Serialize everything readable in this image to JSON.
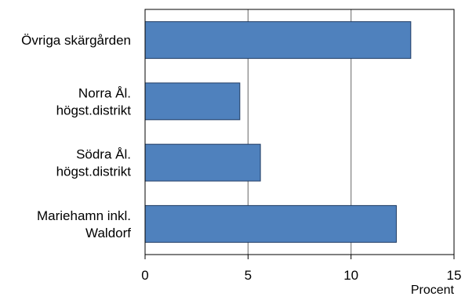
{
  "chart_data": {
    "type": "bar",
    "orientation": "horizontal",
    "categories": [
      [
        "Övriga skärgården"
      ],
      [
        "Norra Ål.",
        "högst.distrikt"
      ],
      [
        "Södra Ål.",
        "högst.distrikt"
      ],
      [
        "Mariehamn inkl.",
        "Waldorf"
      ]
    ],
    "values": [
      12.9,
      4.6,
      5.6,
      12.2
    ],
    "xlim": [
      0,
      15
    ],
    "xticks": [
      "0",
      "5",
      "10",
      "15"
    ],
    "xlabel": "Procent",
    "grid": true,
    "bar_color": "#4F81BD",
    "bar_edge_color": "#1F3B63"
  }
}
